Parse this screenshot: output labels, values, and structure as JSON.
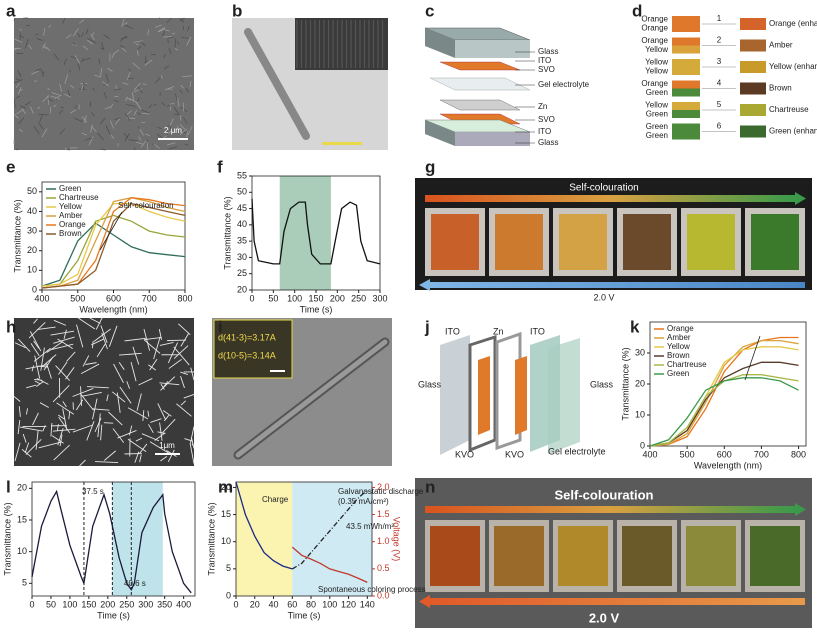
{
  "panel_labels": [
    "a",
    "b",
    "c",
    "d",
    "e",
    "f",
    "g",
    "h",
    "i",
    "j",
    "k",
    "l",
    "m",
    "n"
  ],
  "panel_a": {
    "scale_bar": "2 μm"
  },
  "panel_c": {
    "layers": [
      "Glass",
      "ITO",
      "SVO",
      "Gel electrolyte",
      "Zn",
      "SVO",
      "ITO",
      "Glass"
    ]
  },
  "panel_d": {
    "rows": [
      {
        "left": [
          "Orange",
          "Orange"
        ],
        "number": 1,
        "result": "Orange (enhanced)",
        "colors": [
          "#e0782c",
          "#e0782c",
          "#d4642a"
        ]
      },
      {
        "left": [
          "Orange",
          "Yellow"
        ],
        "number": 2,
        "result": "Amber",
        "colors": [
          "#e0782c",
          "#d9a23a",
          "#a8652e"
        ]
      },
      {
        "left": [
          "Yellow",
          "Yellow"
        ],
        "number": 3,
        "result": "Yellow (enhanced)",
        "colors": [
          "#d4aa3a",
          "#d4aa3a",
          "#c89a2a"
        ]
      },
      {
        "left": [
          "Orange",
          "Green"
        ],
        "number": 4,
        "result": "Brown",
        "colors": [
          "#e0782c",
          "#4a8a3a",
          "#5a3a22"
        ]
      },
      {
        "left": [
          "Yellow",
          "Green"
        ],
        "number": 5,
        "result": "Chartreuse",
        "colors": [
          "#d4aa3a",
          "#4a8a3a",
          "#a8a832"
        ]
      },
      {
        "left": [
          "Green",
          "Green"
        ],
        "number": 6,
        "result": "Green (enhanced)",
        "colors": [
          "#4a8a3a",
          "#4a8a3a",
          "#3a6a2e"
        ]
      }
    ]
  },
  "panel_g": {
    "banner": "Self-colouration",
    "voltage": "2.0 V"
  },
  "panel_h": {
    "scale_bar": "1μm"
  },
  "panel_i": {
    "spacings": [
      "d(41-3)=3.17A",
      "d(10-5)=3.14A"
    ]
  },
  "panel_j": {
    "labels": [
      "ITO",
      "Zn",
      "ITO",
      "Glass",
      "Glass",
      "KVO",
      "KVO",
      "Gel electrolyte"
    ]
  },
  "panel_n": {
    "banner": "Self-colouration",
    "voltage": "2.0 V"
  },
  "chart_data": [
    {
      "type": "line",
      "xlabel": "Wavelength (nm)",
      "ylabel": "Transmittance (%)",
      "x": [
        400,
        450,
        500,
        550,
        600,
        650,
        700,
        750,
        800
      ],
      "xlim": [
        400,
        800
      ],
      "ylim": [
        0,
        55
      ],
      "xticks": [
        400,
        500,
        600,
        700,
        800
      ],
      "yticks": [
        0,
        10,
        20,
        30,
        40,
        50
      ],
      "legend": "upper left",
      "annotations": [
        "Self-colouration"
      ],
      "series": [
        {
          "name": "Green",
          "color": "#2f6e5a",
          "values": [
            2,
            5,
            25,
            34,
            28,
            22,
            19,
            18,
            17
          ]
        },
        {
          "name": "Chartreuse",
          "color": "#9aa53a",
          "values": [
            2,
            3,
            15,
            35,
            38,
            35,
            30,
            28,
            27
          ]
        },
        {
          "name": "Yellow",
          "color": "#e6c84a",
          "values": [
            2,
            3,
            8,
            33,
            44,
            44,
            40,
            37,
            35
          ]
        },
        {
          "name": "Amber",
          "color": "#d9a040",
          "values": [
            1,
            2,
            5,
            25,
            45,
            47,
            45,
            42,
            40
          ]
        },
        {
          "name": "Orange",
          "color": "#e8781e",
          "values": [
            1,
            2,
            3,
            15,
            40,
            47,
            46,
            44,
            43
          ]
        },
        {
          "name": "Brown",
          "color": "#8a5a2a",
          "values": [
            1,
            2,
            3,
            10,
            35,
            44,
            42,
            40,
            38
          ]
        }
      ]
    },
    {
      "type": "line",
      "xlabel": "Time (s)",
      "ylabel": "Transmittance (%)",
      "x": [
        0,
        5,
        15,
        50,
        65,
        75,
        90,
        110,
        125,
        130,
        140,
        160,
        185,
        195,
        210,
        230,
        245,
        255,
        270,
        300
      ],
      "xlim": [
        0,
        300
      ],
      "ylim": [
        20,
        55
      ],
      "xticks": [
        0,
        50,
        100,
        150,
        200,
        250,
        300
      ],
      "yticks": [
        20,
        25,
        30,
        35,
        40,
        45,
        50,
        55
      ],
      "shaded": [
        [
          65,
          185
        ]
      ],
      "shade_colors": [
        "#a9cdb8"
      ],
      "series": [
        {
          "color": "#111",
          "values": [
            48,
            35,
            29,
            28,
            28,
            38,
            45,
            47,
            47,
            40,
            31,
            28,
            28,
            35,
            45,
            47,
            46,
            35,
            29,
            28
          ]
        }
      ]
    },
    {
      "type": "line",
      "xlabel": "Wavelength (nm)",
      "ylabel": "Transmittance (%)",
      "x": [
        400,
        450,
        500,
        550,
        600,
        650,
        700,
        750,
        800
      ],
      "xlim": [
        400,
        820
      ],
      "ylim": [
        0,
        40
      ],
      "xticks": [
        400,
        500,
        600,
        700,
        800
      ],
      "yticks": [
        0,
        10,
        20,
        30
      ],
      "legend": "upper left",
      "series": [
        {
          "name": "Orange",
          "color": "#e8731a",
          "values": [
            0,
            0.5,
            3,
            12,
            24,
            31,
            34,
            35,
            35
          ]
        },
        {
          "name": "Amber",
          "color": "#d9a23a",
          "values": [
            0,
            0.5,
            4,
            14,
            26,
            32,
            34,
            34,
            33
          ]
        },
        {
          "name": "Yellow",
          "color": "#e6c84a",
          "values": [
            0,
            1,
            5,
            16,
            27,
            31,
            32,
            32,
            31
          ]
        },
        {
          "name": "Brown",
          "color": "#5a3a2a",
          "values": [
            0,
            1,
            5,
            15,
            22,
            25,
            27,
            27,
            26
          ]
        },
        {
          "name": "Chartreuse",
          "color": "#a8b84a",
          "values": [
            0,
            1,
            6,
            16,
            21,
            23,
            23,
            22,
            21
          ]
        },
        {
          "name": "Green",
          "color": "#3a9a4a",
          "values": [
            0,
            2,
            9,
            18,
            21,
            22,
            22,
            21,
            18
          ]
        }
      ]
    },
    {
      "type": "line",
      "xlabel": "Time (s)",
      "ylabel": "Transmittance (%)",
      "x": [
        0,
        25,
        50,
        65,
        75,
        100,
        130,
        137,
        160,
        190,
        205,
        230,
        250,
        262,
        270,
        290,
        320,
        345,
        350,
        370,
        400,
        420
      ],
      "xlim": [
        0,
        430
      ],
      "ylim": [
        3,
        21
      ],
      "xticks": [
        0,
        50,
        100,
        150,
        200,
        250,
        300,
        350,
        400
      ],
      "yticks": [
        5,
        10,
        15,
        20
      ],
      "shaded": [
        [
          212,
          345
        ]
      ],
      "shade_colors": [
        "#bfe3ea"
      ],
      "vlines": [
        137,
        212,
        262
      ],
      "annotations": [
        "37.5 s",
        "40.6 s"
      ],
      "series": [
        {
          "color": "#1a1a3a",
          "values": [
            6,
            14,
            18,
            19.5,
            17,
            11,
            6,
            5,
            14,
            19,
            16,
            9,
            5,
            4,
            5,
            13,
            17,
            19,
            16,
            10,
            5,
            3.5
          ]
        }
      ]
    },
    {
      "type": "line",
      "xlabel": "Time (s)",
      "ylabel": "Transmittance (%)",
      "y2label": "Voltage (V)",
      "y2color": "#c0392b",
      "x": [
        0,
        10,
        20,
        30,
        40,
        50,
        60,
        70,
        80,
        90,
        100,
        110,
        120,
        130,
        140
      ],
      "xlim": [
        0,
        145
      ],
      "ylim": [
        0,
        21
      ],
      "y2lim": [
        0,
        2.1
      ],
      "xticks": [
        0,
        20,
        40,
        60,
        80,
        100,
        120,
        140
      ],
      "yticks": [
        0,
        5,
        10,
        15,
        20
      ],
      "y2ticks": [
        {
          "value": 0,
          "label": "0.0"
        },
        0.5,
        {
          "value": 1,
          "label": "1.0"
        },
        1.5,
        {
          "value": 2,
          "label": "2.0"
        }
      ],
      "shaded": [
        [
          0,
          60
        ],
        [
          60,
          145
        ]
      ],
      "shade_colors": [
        "#fbf3b0",
        "#cfeaf3"
      ],
      "annotations": [
        "Charge",
        "Galvanostatic discharge",
        "(0.35 mA/cm²)",
        "43.5 mWh/m²",
        "Spontaneous coloring process"
      ],
      "series": [
        {
          "color": "#1a2a8a",
          "values": [
            21,
            15,
            11,
            8,
            6.5,
            5.5,
            5,
            null,
            null,
            null,
            null,
            null,
            null,
            null,
            null
          ]
        },
        {
          "color": "#222",
          "style": "dash-dot",
          "values": [
            null,
            null,
            null,
            null,
            null,
            null,
            5,
            6,
            8,
            10,
            12,
            14,
            16,
            18,
            19.5
          ]
        },
        {
          "color": "#c0392b",
          "axis": "y2",
          "values": [
            null,
            null,
            null,
            null,
            null,
            null,
            0.9,
            0.75,
            0.68,
            0.6,
            0.5,
            0.45,
            0.4,
            0.33,
            0.25
          ]
        }
      ]
    }
  ]
}
